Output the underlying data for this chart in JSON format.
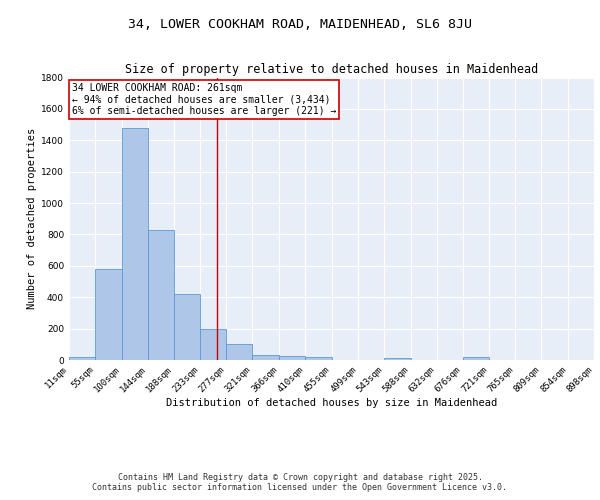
{
  "title": "34, LOWER COOKHAM ROAD, MAIDENHEAD, SL6 8JU",
  "subtitle": "Size of property relative to detached houses in Maidenhead",
  "xlabel": "Distribution of detached houses by size in Maidenhead",
  "ylabel": "Number of detached properties",
  "bin_edges": [
    11,
    55,
    100,
    144,
    188,
    233,
    277,
    321,
    366,
    410,
    455,
    499,
    543,
    588,
    632,
    676,
    721,
    765,
    809,
    854,
    898
  ],
  "bar_heights": [
    20,
    580,
    1480,
    830,
    420,
    200,
    100,
    35,
    25,
    20,
    0,
    0,
    15,
    0,
    0,
    20,
    0,
    0,
    0,
    0
  ],
  "bar_color": "#aec6e8",
  "bar_edge_color": "#5b9bd5",
  "bg_color": "#e8eef8",
  "grid_color": "#ffffff",
  "property_line_x": 261,
  "property_line_color": "#cc0000",
  "annotation_text": "34 LOWER COOKHAM ROAD: 261sqm\n← 94% of detached houses are smaller (3,434)\n6% of semi-detached houses are larger (221) →",
  "annotation_box_color": "#ffffff",
  "annotation_box_edge_color": "#cc0000",
  "ylim": [
    0,
    1800
  ],
  "yticks": [
    0,
    200,
    400,
    600,
    800,
    1000,
    1200,
    1400,
    1600,
    1800
  ],
  "footer_line1": "Contains HM Land Registry data © Crown copyright and database right 2025.",
  "footer_line2": "Contains public sector information licensed under the Open Government Licence v3.0.",
  "title_fontsize": 9.5,
  "subtitle_fontsize": 8.5,
  "label_fontsize": 7.5,
  "tick_fontsize": 6.5,
  "annotation_fontsize": 7,
  "footer_fontsize": 6
}
